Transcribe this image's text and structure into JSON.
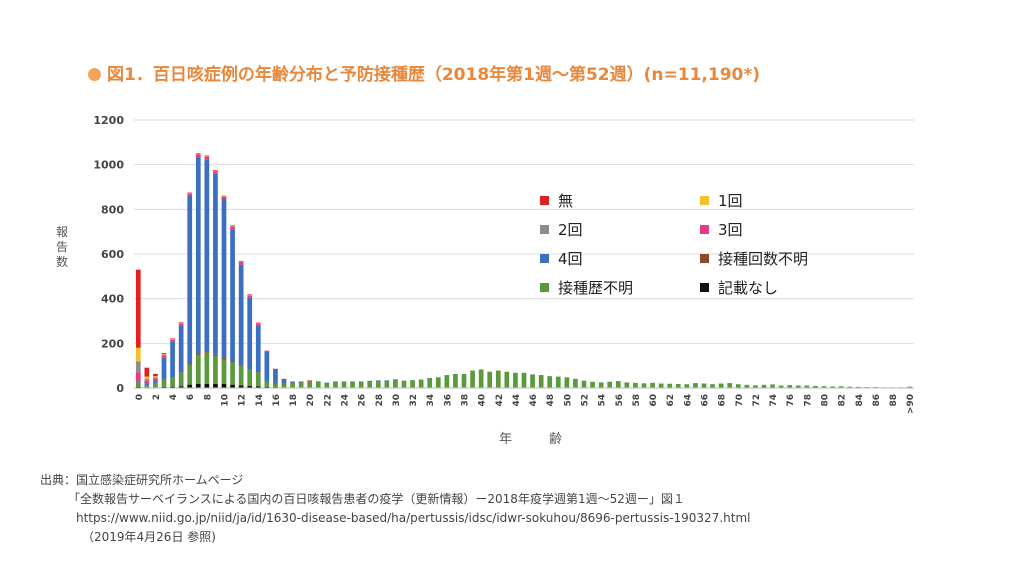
{
  "title": "図1．百日咳症例の年齢分布と予防接種歴（2018年第1週～第52週）(n=11,190*)",
  "source": {
    "line1": "出典：国立感染症研究所ホームページ",
    "line2": "「全数報告サーベイランスによる国内の百日咳報告患者の疫学（更新情報）ー2018年疫学週第1週～52週ー」図１",
    "line3": "https://www.niid.go.jp/niid/ja/id/1630-disease-based/ha/pertussis/idsc/idwr-sokuhou/8696-pertussis-190327.html",
    "line4": "（2019年4月26日 参照)"
  },
  "chart_data": {
    "type": "bar",
    "stacked": true,
    "xlabel": "年　齢",
    "ylabel": "報告数",
    "ylim": [
      0,
      1200
    ],
    "yticks": [
      0,
      200,
      400,
      600,
      800,
      1000,
      1200
    ],
    "xticks": [
      "0",
      "2",
      "4",
      "6",
      "8",
      "10",
      "12",
      "14",
      "16",
      "18",
      "20",
      "22",
      "24",
      "26",
      "28",
      "30",
      "32",
      "34",
      "36",
      "38",
      "40",
      "42",
      "44",
      "46",
      "48",
      "50",
      "52",
      "54",
      "56",
      "58",
      "60",
      "62",
      "64",
      "66",
      "68",
      "70",
      "72",
      "74",
      "76",
      "78",
      "80",
      "82",
      "84",
      "86",
      "88",
      ">90"
    ],
    "legend": [
      {
        "label": "無",
        "color": "#e02020"
      },
      {
        "label": "1回",
        "color": "#f2c12e"
      },
      {
        "label": "2回",
        "color": "#8c8c8c"
      },
      {
        "label": "3回",
        "color": "#e8388a"
      },
      {
        "label": "4回",
        "color": "#3b6fc1"
      },
      {
        "label": "接種回数不明",
        "color": "#8b4a2b"
      },
      {
        "label": "接種歴不明",
        "color": "#5a9a3c"
      },
      {
        "label": "記載なし",
        "color": "#111111"
      }
    ],
    "categories": [
      "0",
      "1",
      "2",
      "3",
      "4",
      "5",
      "6",
      "7",
      "8",
      "9",
      "10",
      "11",
      "12",
      "13",
      "14",
      "15",
      "16",
      "17",
      "18",
      "19",
      "20",
      "21",
      "22",
      "23",
      "24",
      "25",
      "26",
      "27",
      "28",
      "29",
      "30",
      "31",
      "32",
      "33",
      "34",
      "35",
      "36",
      "37",
      "38",
      "39",
      "40",
      "41",
      "42",
      "43",
      "44",
      "45",
      "46",
      "47",
      "48",
      "49",
      "50",
      "51",
      "52",
      "53",
      "54",
      "55",
      "56",
      "57",
      "58",
      "59",
      "60",
      "61",
      "62",
      "63",
      "64",
      "65",
      "66",
      "67",
      "68",
      "69",
      "70",
      "71",
      "72",
      "73",
      "74",
      "75",
      "76",
      "77",
      "78",
      "79",
      "80",
      "81",
      "82",
      "83",
      "84",
      "85",
      "86",
      "87",
      "88",
      "89",
      ">90"
    ],
    "series": [
      {
        "name": "無",
        "values": [
          350,
          40,
          10,
          5,
          3,
          2,
          2,
          2,
          2,
          2,
          2,
          2,
          2,
          2,
          2,
          1,
          1,
          1,
          1,
          1,
          1,
          0,
          0,
          0,
          0,
          0,
          0,
          0,
          0,
          0,
          0,
          0,
          0,
          0,
          0,
          0,
          0,
          0,
          0,
          0,
          0,
          0,
          0,
          0,
          0,
          0,
          0,
          0,
          0,
          0,
          0,
          0,
          0,
          0,
          0,
          0,
          0,
          0,
          0,
          0,
          0,
          0,
          0,
          0,
          0,
          0,
          0,
          0,
          0,
          0,
          0,
          0,
          0,
          0,
          0,
          0,
          0,
          0,
          0,
          0,
          0,
          0,
          0,
          0,
          0,
          0,
          0,
          0,
          0,
          0,
          0
        ]
      },
      {
        "name": "1回",
        "values": [
          60,
          10,
          5,
          3,
          2,
          1,
          1,
          1,
          1,
          1,
          1,
          1,
          1,
          1,
          1,
          0,
          0,
          0,
          0,
          0,
          0,
          0,
          0,
          0,
          0,
          0,
          0,
          0,
          0,
          0,
          0,
          0,
          0,
          0,
          0,
          0,
          0,
          0,
          0,
          0,
          0,
          0,
          0,
          0,
          0,
          0,
          0,
          0,
          0,
          0,
          0,
          0,
          0,
          0,
          0,
          0,
          0,
          0,
          0,
          0,
          0,
          0,
          0,
          0,
          0,
          0,
          0,
          0,
          0,
          0,
          0,
          0,
          0,
          0,
          0,
          0,
          0,
          0,
          0,
          0,
          0,
          0,
          0,
          0,
          0,
          0,
          0,
          0,
          0,
          0,
          0
        ]
      },
      {
        "name": "2回",
        "values": [
          50,
          8,
          5,
          3,
          2,
          2,
          2,
          2,
          2,
          2,
          2,
          2,
          2,
          2,
          1,
          0,
          0,
          0,
          0,
          0,
          0,
          0,
          0,
          0,
          0,
          0,
          0,
          0,
          0,
          0,
          0,
          0,
          0,
          0,
          0,
          0,
          0,
          0,
          0,
          0,
          0,
          0,
          0,
          0,
          0,
          0,
          0,
          0,
          0,
          0,
          0,
          0,
          0,
          0,
          0,
          0,
          0,
          0,
          0,
          0,
          0,
          0,
          0,
          0,
          0,
          0,
          0,
          0,
          0,
          0,
          0,
          0,
          0,
          0,
          0,
          0,
          0,
          0,
          0,
          0,
          0,
          0,
          0,
          0,
          0,
          0,
          0,
          0,
          0,
          0,
          0
        ]
      },
      {
        "name": "3回",
        "values": [
          40,
          15,
          10,
          8,
          7,
          8,
          10,
          12,
          12,
          12,
          12,
          12,
          12,
          10,
          8,
          4,
          2,
          1,
          0,
          0,
          0,
          0,
          0,
          0,
          0,
          0,
          0,
          0,
          0,
          0,
          0,
          0,
          0,
          0,
          0,
          0,
          0,
          0,
          0,
          0,
          0,
          0,
          0,
          0,
          0,
          0,
          0,
          0,
          0,
          0,
          0,
          0,
          0,
          0,
          0,
          0,
          0,
          0,
          0,
          0,
          0,
          0,
          0,
          0,
          0,
          0,
          0,
          0,
          0,
          0,
          0,
          0,
          0,
          0,
          0,
          0,
          0,
          0,
          0,
          0,
          0,
          0,
          0,
          0,
          0,
          0,
          0,
          0,
          0,
          0,
          0
        ]
      },
      {
        "name": "4回",
        "values": [
          5,
          5,
          10,
          100,
          160,
          210,
          750,
          880,
          860,
          810,
          710,
          590,
          450,
          320,
          210,
          130,
          60,
          20,
          5,
          3,
          2,
          2,
          1,
          1,
          1,
          1,
          1,
          1,
          1,
          1,
          1,
          0,
          0,
          0,
          0,
          0,
          0,
          0,
          0,
          0,
          0,
          0,
          0,
          0,
          0,
          0,
          0,
          0,
          0,
          0,
          0,
          0,
          0,
          0,
          0,
          0,
          0,
          0,
          0,
          0,
          0,
          0,
          0,
          0,
          0,
          0,
          0,
          0,
          0,
          0,
          0,
          0,
          0,
          0,
          0,
          0,
          0,
          0,
          0,
          0,
          0,
          0,
          0,
          0,
          0,
          0,
          0,
          0,
          0,
          0,
          0
        ]
      },
      {
        "name": "接種回数不明",
        "values": [
          0,
          0,
          0,
          2,
          2,
          3,
          5,
          6,
          6,
          6,
          6,
          6,
          5,
          4,
          3,
          2,
          1,
          1,
          0,
          0,
          0,
          0,
          0,
          0,
          0,
          0,
          0,
          0,
          0,
          0,
          0,
          0,
          0,
          0,
          0,
          0,
          0,
          0,
          0,
          0,
          0,
          0,
          0,
          0,
          0,
          0,
          0,
          0,
          0,
          0,
          0,
          0,
          0,
          0,
          0,
          0,
          0,
          0,
          0,
          0,
          0,
          0,
          0,
          0,
          0,
          0,
          0,
          0,
          0,
          0,
          0,
          0,
          0,
          0,
          0,
          0,
          0,
          0,
          0,
          0,
          0,
          0,
          0,
          0,
          0,
          0,
          0,
          0,
          0,
          0,
          0
        ]
      },
      {
        "name": "接種歴不明",
        "values": [
          20,
          10,
          20,
          30,
          40,
          60,
          90,
          130,
          140,
          125,
          110,
          100,
          85,
          70,
          60,
          25,
          18,
          15,
          20,
          22,
          28,
          25,
          20,
          25,
          25,
          25,
          25,
          28,
          30,
          30,
          35,
          30,
          32,
          35,
          42,
          45,
          55,
          60,
          60,
          75,
          80,
          70,
          75,
          70,
          65,
          65,
          58,
          55,
          50,
          48,
          45,
          38,
          30,
          25,
          22,
          25,
          28,
          22,
          20,
          18,
          20,
          18,
          17,
          16,
          15,
          20,
          18,
          15,
          18,
          20,
          15,
          12,
          10,
          12,
          14,
          10,
          12,
          10,
          10,
          8,
          7,
          6,
          7,
          5,
          4,
          3,
          3,
          2,
          2,
          2,
          5
        ]
      },
      {
        "name": "記載なし",
        "values": [
          5,
          3,
          3,
          5,
          6,
          8,
          15,
          18,
          18,
          18,
          18,
          15,
          12,
          10,
          8,
          5,
          4,
          3,
          3,
          3,
          3,
          3,
          3,
          3,
          3,
          3,
          3,
          3,
          3,
          3,
          3,
          3,
          3,
          3,
          3,
          3,
          3,
          3,
          3,
          3,
          3,
          3,
          3,
          3,
          3,
          3,
          3,
          3,
          3,
          3,
          3,
          3,
          3,
          3,
          3,
          3,
          3,
          3,
          3,
          3,
          3,
          2,
          2,
          2,
          2,
          2,
          2,
          2,
          2,
          2,
          2,
          2,
          2,
          2,
          2,
          1,
          1,
          1,
          1,
          1,
          1,
          1,
          1,
          1,
          1,
          1,
          1,
          1,
          1,
          1,
          1
        ]
      }
    ]
  }
}
